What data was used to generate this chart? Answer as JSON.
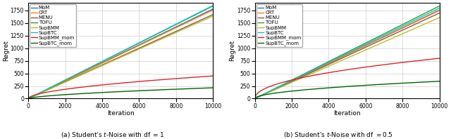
{
  "subplot_a": {
    "title": "(a) Student's $t$-Noise with df $= 1$",
    "curves": {
      "MoM": {
        "color": "#1f77b4",
        "end": 1780,
        "exponent": 1.0
      },
      "CRT": {
        "color": "#ff7f0e",
        "end": 1760,
        "exponent": 1.0
      },
      "MENU": {
        "color": "#8c564b",
        "end": 1670,
        "exponent": 1.0
      },
      "TOFU": {
        "color": "#2ca02c",
        "end": 1840,
        "exponent": 1.0
      },
      "SupBMM": {
        "color": "#bcbd22",
        "end": 1640,
        "exponent": 1.0
      },
      "SupBTC": {
        "color": "#17becf",
        "end": 1850,
        "exponent": 1.0
      },
      "SupBMM_mom": {
        "color": "#d62728",
        "end": 450,
        "exponent": 0.55
      },
      "SupBTC_mom": {
        "color": "#006400",
        "end": 215,
        "exponent": 0.62
      }
    }
  },
  "subplot_b": {
    "title": "(b) Student's $t$-Noise with df $= 0.5$",
    "curves": {
      "MoM": {
        "color": "#1f77b4",
        "end": 1760,
        "exponent": 1.0
      },
      "CRT": {
        "color": "#ff7f0e",
        "end": 1750,
        "exponent": 1.0
      },
      "MENU": {
        "color": "#8c564b",
        "end": 1700,
        "exponent": 1.0
      },
      "TOFU": {
        "color": "#2ca02c",
        "end": 1840,
        "exponent": 1.0
      },
      "SupBMM": {
        "color": "#bcbd22",
        "end": 1610,
        "exponent": 1.0
      },
      "SupBTC": {
        "color": "#17becf",
        "end": 1800,
        "exponent": 1.0
      },
      "SupBMM_mom": {
        "color": "#d62728",
        "end": 800,
        "exponent": 0.48
      },
      "SupBTC_mom": {
        "color": "#006400",
        "end": 345,
        "exponent": 0.52
      }
    }
  },
  "xlim": [
    0,
    10000
  ],
  "ylim": [
    0,
    1900
  ],
  "yticks": [
    0,
    250,
    500,
    750,
    1000,
    1250,
    1500,
    1750
  ],
  "xticks": [
    0,
    2000,
    4000,
    6000,
    8000,
    10000
  ],
  "xlabel": "Iteration",
  "ylabel": "Regret",
  "legend_order": [
    "MoM",
    "CRT",
    "MENU",
    "TOFU",
    "SupBMM",
    "SupBTC",
    "SupBMM_mom",
    "SupBTC_mom"
  ],
  "n": 10000,
  "figwidth": 6.4,
  "figheight": 1.98,
  "dpi": 100
}
